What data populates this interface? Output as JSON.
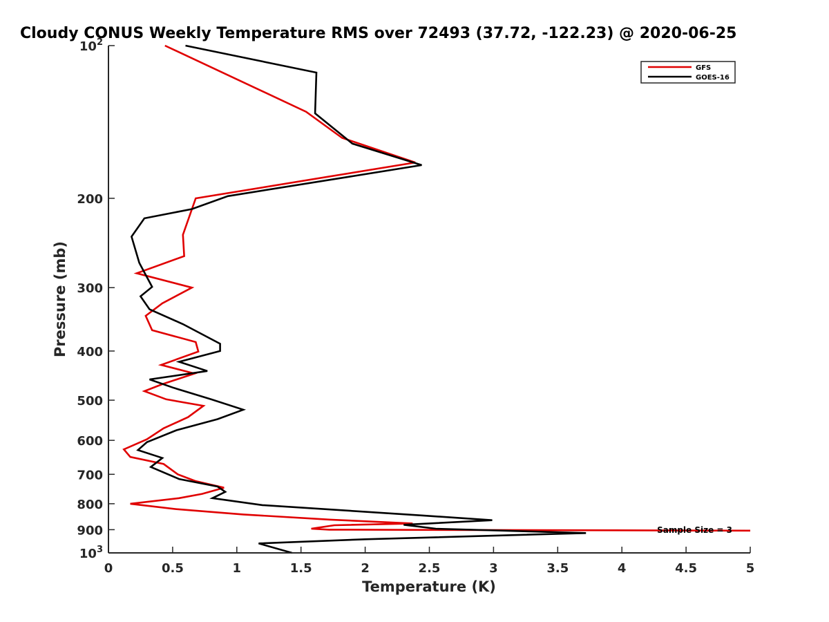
{
  "chart_data": {
    "type": "line",
    "title": "Cloudy CONUS Weekly Temperature RMS over 72493 (37.72, -122.23) @ 2020-06-25",
    "xlabel": "Temperature (K)",
    "ylabel": "Pressure (mb)",
    "xlim": [
      0,
      5
    ],
    "ylim": [
      100,
      1000
    ],
    "y_scale": "log",
    "y_reversed": true,
    "grid": false,
    "legend_position": "top-right",
    "x_ticks": [
      0,
      0.5,
      1,
      1.5,
      2,
      2.5,
      3,
      3.5,
      4,
      4.5,
      5
    ],
    "x_tick_labels": [
      "0",
      "0.5",
      "1",
      "1.5",
      "2",
      "2.5",
      "3",
      "3.5",
      "4",
      "4.5",
      "5"
    ],
    "y_ticks": [
      200,
      300,
      400,
      500,
      600,
      700,
      800,
      900
    ],
    "y_tick_labels": [
      "200",
      "300",
      "400",
      "500",
      "600",
      "700",
      "800",
      "900"
    ],
    "y_decade_ticks": [
      {
        "value": 100,
        "base": "10",
        "exp": "2"
      },
      {
        "value": 1000,
        "base": "10",
        "exp": "3"
      }
    ],
    "annotation": "Sample Size = 3",
    "series": [
      {
        "name": "GFS",
        "color": "#e00000",
        "points": [
          [
            0.44,
            100
          ],
          [
            1.54,
            135
          ],
          [
            1.82,
            152
          ],
          [
            2.39,
            170
          ],
          [
            0.68,
            200
          ],
          [
            0.58,
            236
          ],
          [
            0.59,
            260
          ],
          [
            0.22,
            281
          ],
          [
            0.65,
            300
          ],
          [
            0.42,
            322
          ],
          [
            0.29,
            341
          ],
          [
            0.34,
            364
          ],
          [
            0.68,
            384
          ],
          [
            0.7,
            401
          ],
          [
            0.41,
            426
          ],
          [
            0.67,
            443
          ],
          [
            0.42,
            465
          ],
          [
            0.28,
            480
          ],
          [
            0.45,
            498
          ],
          [
            0.74,
            513
          ],
          [
            0.62,
            540
          ],
          [
            0.43,
            568
          ],
          [
            0.3,
            597
          ],
          [
            0.12,
            625
          ],
          [
            0.17,
            647
          ],
          [
            0.43,
            668
          ],
          [
            0.54,
            700
          ],
          [
            0.68,
            722
          ],
          [
            0.9,
            744
          ],
          [
            0.73,
            765
          ],
          [
            0.55,
            780
          ],
          [
            0.17,
            800
          ],
          [
            0.53,
            820
          ],
          [
            1.05,
            840
          ],
          [
            1.73,
            860
          ],
          [
            2.37,
            875
          ],
          [
            1.76,
            882
          ],
          [
            1.58,
            896
          ],
          [
            1.72,
            900
          ],
          [
            5.0,
            904
          ]
        ]
      },
      {
        "name": "GOES-16",
        "color": "#000000",
        "points": [
          [
            0.6,
            100
          ],
          [
            1.62,
            113
          ],
          [
            1.61,
            136
          ],
          [
            1.9,
            156
          ],
          [
            2.44,
            172
          ],
          [
            0.93,
            198
          ],
          [
            0.65,
            210
          ],
          [
            0.28,
            219
          ],
          [
            0.18,
            238
          ],
          [
            0.24,
            268
          ],
          [
            0.34,
            299
          ],
          [
            0.25,
            312
          ],
          [
            0.32,
            331
          ],
          [
            0.58,
            354
          ],
          [
            0.87,
            387
          ],
          [
            0.87,
            400
          ],
          [
            0.55,
            420
          ],
          [
            0.77,
            438
          ],
          [
            0.32,
            455
          ],
          [
            0.5,
            472
          ],
          [
            0.8,
            498
          ],
          [
            1.05,
            522
          ],
          [
            0.85,
            545
          ],
          [
            0.53,
            573
          ],
          [
            0.3,
            605
          ],
          [
            0.23,
            627
          ],
          [
            0.42,
            650
          ],
          [
            0.33,
            677
          ],
          [
            0.55,
            715
          ],
          [
            0.85,
            740
          ],
          [
            0.91,
            758
          ],
          [
            0.81,
            780
          ],
          [
            1.2,
            805
          ],
          [
            2.45,
            844
          ],
          [
            2.99,
            862
          ],
          [
            2.3,
            880
          ],
          [
            2.55,
            896
          ],
          [
            3.72,
            914
          ],
          [
            2.0,
            940
          ],
          [
            1.17,
            958
          ],
          [
            1.43,
            1000
          ]
        ]
      }
    ]
  }
}
